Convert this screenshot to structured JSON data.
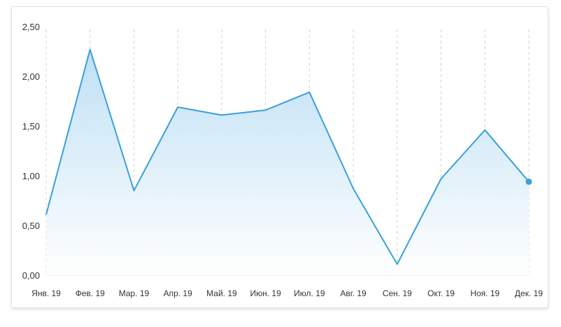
{
  "chart_data": {
    "type": "area",
    "categories": [
      "Янв. 19",
      "Фев. 19",
      "Мар. 19",
      "Апр. 19",
      "Май. 19",
      "Июн. 19",
      "Июл. 19",
      "Авг. 19",
      "Сен. 19",
      "Окт. 19",
      "Ноя. 19",
      "Дек. 19"
    ],
    "series": [
      {
        "values": [
          0.61,
          2.27,
          0.85,
          1.69,
          1.61,
          1.66,
          1.84,
          0.87,
          0.11,
          0.97,
          1.46,
          0.94
        ]
      }
    ],
    "y_ticks": [
      "0,00",
      "0,50",
      "1,00",
      "1,50",
      "2,00",
      "2,50"
    ],
    "ylim": [
      0,
      2.5
    ],
    "vertical_grid": "dashed",
    "line_color": "#3aa0d8",
    "fill_color_top": "#bfe0f5",
    "fill_color_bottom": "#ffffff",
    "last_point_marker": true
  }
}
